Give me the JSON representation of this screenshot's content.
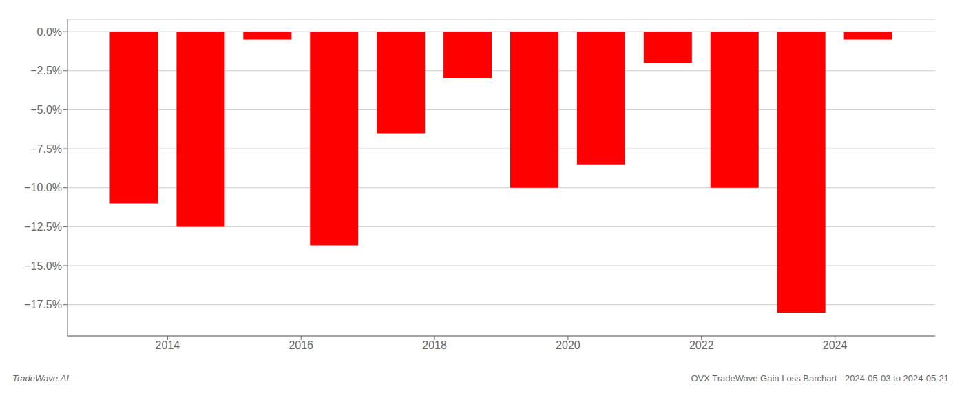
{
  "chart_data": {
    "type": "bar",
    "x": [
      2013.5,
      2014.5,
      2015.5,
      2016.5,
      2017.5,
      2018.5,
      2019.5,
      2020.5,
      2021.5,
      2022.5,
      2023.5,
      2024.5
    ],
    "values": [
      -11.0,
      -12.5,
      -0.5,
      -13.7,
      -6.5,
      -3.0,
      -10.0,
      -8.5,
      -2.0,
      -10.0,
      -18.0,
      -0.5
    ],
    "color": "#ff0000",
    "xlim": [
      2012.5,
      2025.5
    ],
    "xticks": [
      2014,
      2016,
      2018,
      2020,
      2022,
      2024
    ],
    "ylim": [
      -19.5,
      0.8
    ],
    "yticks": [
      {
        "value": 0.0,
        "label": "0.0%"
      },
      {
        "value": -2.5,
        "label": "−2.5%"
      },
      {
        "value": -5.0,
        "label": "−5.0%"
      },
      {
        "value": -7.5,
        "label": "−7.5%"
      },
      {
        "value": -10.0,
        "label": "−10.0%"
      },
      {
        "value": -12.5,
        "label": "−12.5%"
      },
      {
        "value": -15.0,
        "label": "−15.0%"
      },
      {
        "value": -17.5,
        "label": "−17.5%"
      }
    ],
    "grid": true,
    "annotations": [
      "TradeWave.AI",
      "OVX TradeWave Gain Loss Barchart - 2024-05-03 to 2024-05-21"
    ]
  }
}
